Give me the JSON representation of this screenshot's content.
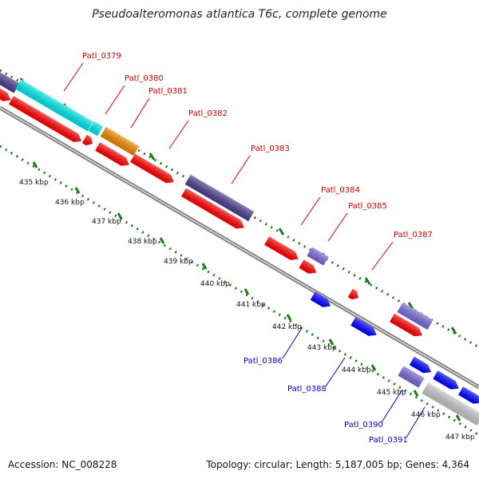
{
  "title": "Pseudoalteromonas atlantica T6c, complete genome",
  "footer": {
    "accession": "Accession: NC_008228",
    "topology": "Topology: circular; Length: 5,187,005 bp; Genes: 4,364"
  },
  "colors": {
    "red": "#ff0000",
    "cyan": "#00e8ea",
    "orange": "#f08a00",
    "dark_purple": "#4a3f8c",
    "light_purple": "#7a6ad8",
    "blue": "#0000ff",
    "gray": "#c8c8c8",
    "backbone": "#808080",
    "tick": "#1a7a1a",
    "label_red": "#cc0000",
    "label_blue": "#0000cc"
  },
  "kbp_ticks": [
    "435 kbp",
    "436 kbp",
    "437 kbp",
    "438 kbp",
    "439 kbp",
    "440 kbp",
    "441 kbp",
    "442 kbp",
    "443 kbp",
    "444 kbp",
    "445 kbp",
    "446 kbp",
    "447 kbp"
  ],
  "gene_labels": [
    {
      "text": "Patl_0379",
      "color": "red"
    },
    {
      "text": "Patl_0380",
      "color": "red"
    },
    {
      "text": "Patl_0381",
      "color": "red"
    },
    {
      "text": "Patl_0382",
      "color": "red"
    },
    {
      "text": "Patl_0383",
      "color": "red"
    },
    {
      "text": "Patl_0384",
      "color": "red"
    },
    {
      "text": "Patl_0385",
      "color": "red"
    },
    {
      "text": "Patl_0387",
      "color": "red"
    },
    {
      "text": "Patl_0386",
      "color": "blue"
    },
    {
      "text": "Patl_0388",
      "color": "blue"
    },
    {
      "text": "Patl_0390",
      "color": "blue"
    },
    {
      "text": "Patl_0391",
      "color": "blue"
    }
  ]
}
